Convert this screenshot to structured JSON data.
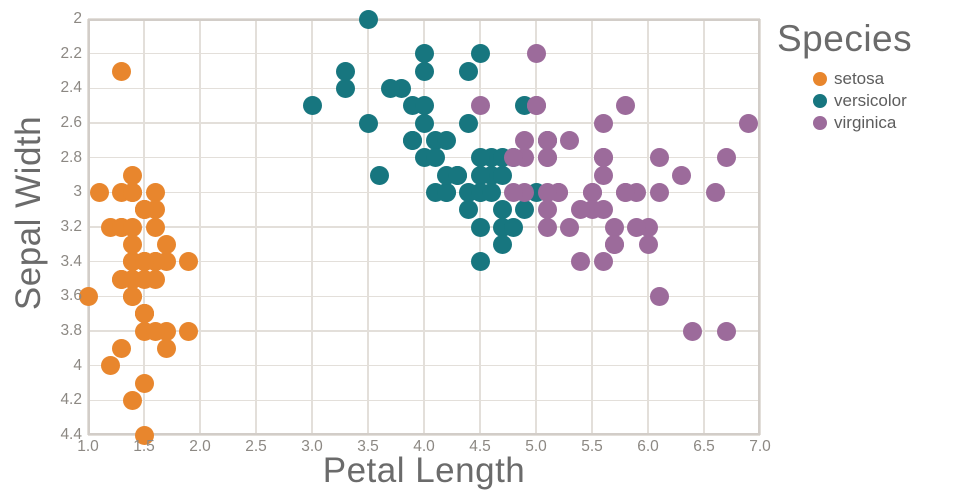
{
  "chart_data": {
    "type": "scatter",
    "title": "",
    "xlabel": "Petal Length",
    "ylabel": "Sepal Width",
    "legend_title": "Species",
    "legend_position": "right-top",
    "grid": true,
    "y_inverted": true,
    "xlim": [
      1.0,
      7.0
    ],
    "ylim": [
      2.0,
      4.4
    ],
    "x_tick_values": [
      1.0,
      1.5,
      2.0,
      2.5,
      3.0,
      3.5,
      4.0,
      4.5,
      5.0,
      5.5,
      6.0,
      6.5,
      7.0
    ],
    "x_tick_labels": [
      "1.0",
      "1.5",
      "2.0",
      "2.5",
      "3.0",
      "3.5",
      "4.0",
      "4.5",
      "5.0",
      "5.5",
      "6.0",
      "6.5",
      "7.0"
    ],
    "y_tick_values": [
      2.0,
      2.2,
      2.4,
      2.6,
      2.8,
      3.0,
      3.2,
      3.4,
      3.6,
      3.8,
      4.0,
      4.2,
      4.4
    ],
    "y_tick_labels": [
      "2",
      "2.2",
      "2.4",
      "2.6",
      "2.8",
      "3",
      "3.2",
      "3.4",
      "3.6",
      "3.8",
      "4",
      "4.2",
      "4.4"
    ],
    "colors": {
      "background": "#ffffff",
      "gridline": "#e3dfda",
      "plot_border": "#d2cdc8",
      "axis_title_text": "#6b6b6b",
      "tick_text": "#8c8883",
      "legend_text": "#5d5d5d"
    },
    "series": [
      {
        "name": "setosa",
        "color": "#E8862D",
        "points": [
          [
            1.4,
            3.5
          ],
          [
            1.4,
            3.0
          ],
          [
            1.3,
            3.2
          ],
          [
            1.5,
            3.1
          ],
          [
            1.4,
            3.6
          ],
          [
            1.7,
            3.9
          ],
          [
            1.4,
            3.4
          ],
          [
            1.5,
            3.4
          ],
          [
            1.4,
            2.9
          ],
          [
            1.5,
            3.1
          ],
          [
            1.5,
            3.7
          ],
          [
            1.6,
            3.4
          ],
          [
            1.4,
            3.0
          ],
          [
            1.1,
            3.0
          ],
          [
            1.2,
            4.0
          ],
          [
            1.5,
            4.4
          ],
          [
            1.3,
            3.9
          ],
          [
            1.4,
            3.5
          ],
          [
            1.7,
            3.8
          ],
          [
            1.5,
            3.8
          ],
          [
            1.7,
            3.4
          ],
          [
            1.5,
            3.7
          ],
          [
            1.0,
            3.6
          ],
          [
            1.7,
            3.3
          ],
          [
            1.9,
            3.4
          ],
          [
            1.6,
            3.0
          ],
          [
            1.6,
            3.4
          ],
          [
            1.5,
            3.5
          ],
          [
            1.4,
            3.4
          ],
          [
            1.6,
            3.2
          ],
          [
            1.6,
            3.1
          ],
          [
            1.5,
            3.4
          ],
          [
            1.5,
            4.1
          ],
          [
            1.4,
            4.2
          ],
          [
            1.5,
            3.1
          ],
          [
            1.2,
            3.2
          ],
          [
            1.3,
            3.5
          ],
          [
            1.4,
            3.6
          ],
          [
            1.3,
            3.0
          ],
          [
            1.5,
            3.4
          ],
          [
            1.3,
            3.5
          ],
          [
            1.3,
            2.3
          ],
          [
            1.3,
            3.2
          ],
          [
            1.6,
            3.5
          ],
          [
            1.9,
            3.8
          ],
          [
            1.4,
            3.0
          ],
          [
            1.6,
            3.8
          ],
          [
            1.4,
            3.2
          ],
          [
            1.5,
            3.7
          ],
          [
            1.4,
            3.3
          ]
        ]
      },
      {
        "name": "versicolor",
        "color": "#17767F",
        "points": [
          [
            4.7,
            3.2
          ],
          [
            4.5,
            3.2
          ],
          [
            4.9,
            3.1
          ],
          [
            4.0,
            2.3
          ],
          [
            4.6,
            2.8
          ],
          [
            4.5,
            2.8
          ],
          [
            4.7,
            3.3
          ],
          [
            3.3,
            2.4
          ],
          [
            4.6,
            2.9
          ],
          [
            3.9,
            2.7
          ],
          [
            3.5,
            2.0
          ],
          [
            4.2,
            3.0
          ],
          [
            4.0,
            2.2
          ],
          [
            4.7,
            2.9
          ],
          [
            3.6,
            2.9
          ],
          [
            4.4,
            3.1
          ],
          [
            4.5,
            3.0
          ],
          [
            4.1,
            2.7
          ],
          [
            4.5,
            2.2
          ],
          [
            3.9,
            2.5
          ],
          [
            4.8,
            3.2
          ],
          [
            4.0,
            2.8
          ],
          [
            4.9,
            2.5
          ],
          [
            4.7,
            2.8
          ],
          [
            4.3,
            2.9
          ],
          [
            4.4,
            3.0
          ],
          [
            4.8,
            2.8
          ],
          [
            5.0,
            3.0
          ],
          [
            4.5,
            2.9
          ],
          [
            3.5,
            2.6
          ],
          [
            3.8,
            2.4
          ],
          [
            3.7,
            2.4
          ],
          [
            3.9,
            2.7
          ],
          [
            5.1,
            2.7
          ],
          [
            4.5,
            3.0
          ],
          [
            4.5,
            3.4
          ],
          [
            4.7,
            3.1
          ],
          [
            4.4,
            2.3
          ],
          [
            4.1,
            3.0
          ],
          [
            4.0,
            2.5
          ],
          [
            4.4,
            2.6
          ],
          [
            4.6,
            3.0
          ],
          [
            4.0,
            2.6
          ],
          [
            3.3,
            2.3
          ],
          [
            4.2,
            2.7
          ],
          [
            4.2,
            3.0
          ],
          [
            4.2,
            2.9
          ],
          [
            4.3,
            2.9
          ],
          [
            3.0,
            2.5
          ],
          [
            4.1,
            2.8
          ]
        ]
      },
      {
        "name": "virginica",
        "color": "#9C6B9B",
        "points": [
          [
            6.0,
            3.3
          ],
          [
            5.1,
            2.7
          ],
          [
            5.9,
            3.0
          ],
          [
            5.6,
            2.9
          ],
          [
            5.8,
            3.0
          ],
          [
            6.6,
            3.0
          ],
          [
            4.5,
            2.5
          ],
          [
            6.3,
            2.9
          ],
          [
            5.8,
            2.5
          ],
          [
            6.1,
            3.6
          ],
          [
            5.1,
            3.2
          ],
          [
            5.3,
            2.7
          ],
          [
            5.5,
            3.0
          ],
          [
            5.0,
            2.5
          ],
          [
            5.1,
            2.8
          ],
          [
            5.3,
            3.2
          ],
          [
            5.5,
            3.0
          ],
          [
            6.7,
            3.8
          ],
          [
            6.9,
            2.6
          ],
          [
            5.0,
            2.2
          ],
          [
            5.7,
            3.2
          ],
          [
            4.9,
            2.8
          ],
          [
            6.7,
            2.8
          ],
          [
            4.9,
            2.7
          ],
          [
            5.7,
            3.3
          ],
          [
            6.0,
            3.2
          ],
          [
            4.8,
            2.8
          ],
          [
            4.9,
            3.0
          ],
          [
            5.6,
            2.8
          ],
          [
            5.8,
            3.0
          ],
          [
            6.1,
            2.8
          ],
          [
            6.4,
            3.8
          ],
          [
            5.6,
            2.8
          ],
          [
            5.1,
            2.8
          ],
          [
            5.6,
            2.6
          ],
          [
            6.1,
            3.0
          ],
          [
            5.6,
            3.4
          ],
          [
            5.5,
            3.1
          ],
          [
            4.8,
            3.0
          ],
          [
            5.4,
            3.1
          ],
          [
            5.6,
            3.1
          ],
          [
            5.1,
            3.1
          ],
          [
            5.1,
            2.7
          ],
          [
            5.9,
            3.2
          ],
          [
            5.7,
            3.3
          ],
          [
            5.2,
            3.0
          ],
          [
            5.0,
            2.5
          ],
          [
            5.2,
            3.0
          ],
          [
            5.4,
            3.4
          ],
          [
            5.1,
            3.0
          ]
        ]
      }
    ]
  }
}
